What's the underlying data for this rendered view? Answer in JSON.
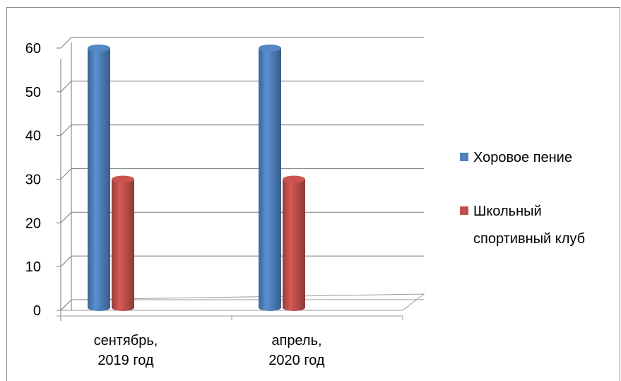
{
  "chart_data": {
    "type": "bar",
    "title": "",
    "xlabel": "",
    "ylabel": "",
    "categories": [
      [
        "сентябрь,",
        "2019 год"
      ],
      [
        "апрель,",
        "2020 год"
      ]
    ],
    "series": [
      {
        "name": "Хоровое пение",
        "values": [
          60,
          60
        ],
        "color": "#4f81bd"
      },
      {
        "name": "Школьный спортивный клуб",
        "values": [
          30,
          30
        ],
        "color": "#c0504d"
      }
    ],
    "ylim": [
      0,
      60
    ],
    "yticks": [
      0,
      10,
      20,
      30,
      40,
      50,
      60
    ],
    "grid": true,
    "legend": {
      "position": "right",
      "entries": [
        {
          "lines": [
            "Хоровое пение"
          ]
        },
        {
          "lines": [
            "Школьный",
            "спортивный клуб"
          ]
        }
      ]
    }
  }
}
